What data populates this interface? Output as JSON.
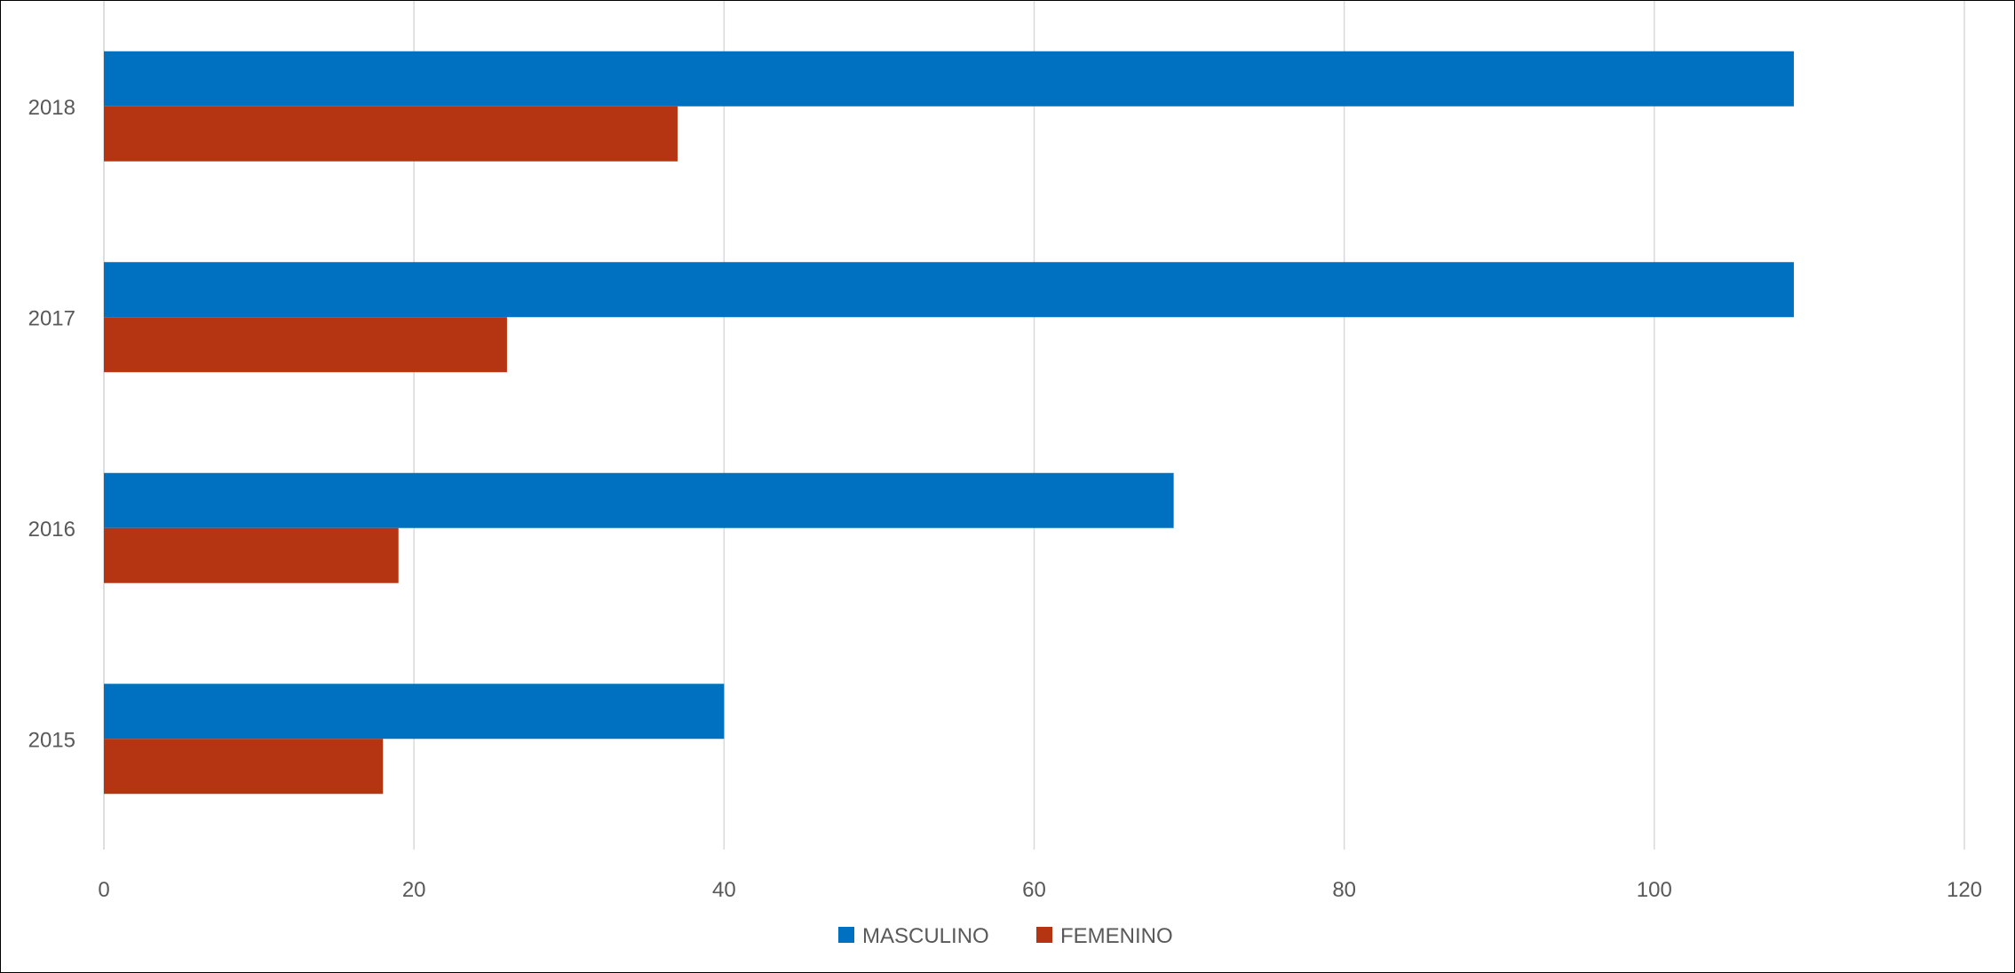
{
  "chart_data": {
    "type": "bar",
    "orientation": "horizontal",
    "categories": [
      "2015",
      "2016",
      "2017",
      "2018"
    ],
    "series": [
      {
        "name": "MASCULINO",
        "color": "#0070C0",
        "values": [
          40,
          69,
          109,
          109
        ]
      },
      {
        "name": "FEMENINO",
        "color": "#B53513",
        "values": [
          18,
          19,
          26,
          37
        ]
      }
    ],
    "x_ticks": [
      "0",
      "20",
      "40",
      "60",
      "80",
      "100",
      "120"
    ],
    "xlim": [
      0,
      120
    ],
    "grid": "vertical",
    "legend_position": "bottom"
  }
}
